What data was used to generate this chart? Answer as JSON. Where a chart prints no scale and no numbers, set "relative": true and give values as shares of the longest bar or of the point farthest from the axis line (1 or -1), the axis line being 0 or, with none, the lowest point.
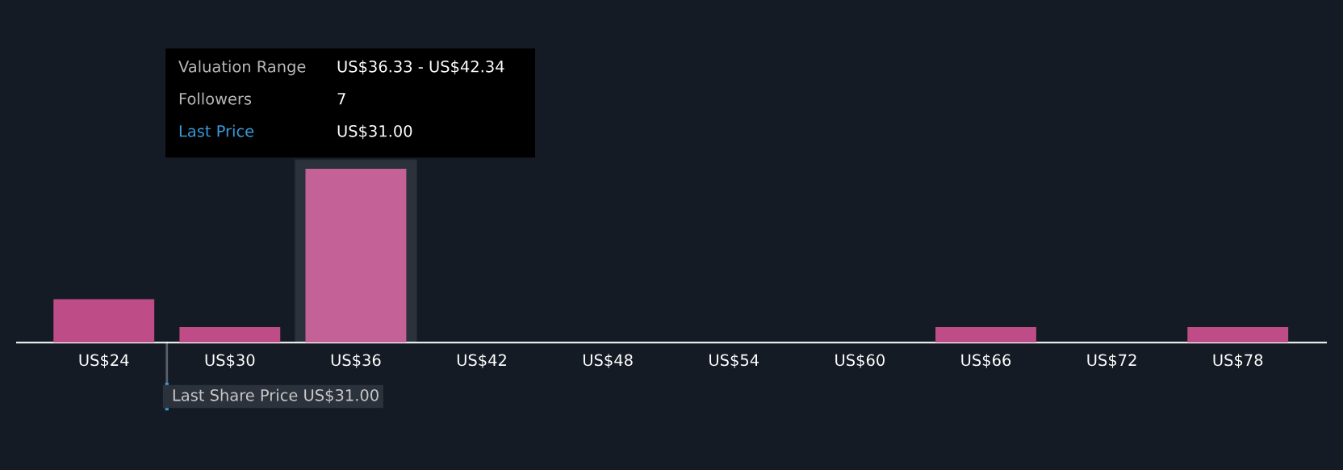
{
  "chart_data": {
    "type": "bar",
    "relative": true,
    "categories": [
      "US$24",
      "US$30",
      "US$36",
      "US$42",
      "US$48",
      "US$54",
      "US$60",
      "US$66",
      "US$72",
      "US$78"
    ],
    "values": [
      0.25,
      0.09,
      1,
      0,
      0,
      0,
      0,
      0.09,
      0,
      0.09
    ],
    "colors": [
      "#bd4c87",
      "#bd4c87",
      "#c46298",
      "#bd4c87",
      "#bd4c87",
      "#bd4c87",
      "#bd4c87",
      "#bd4c87",
      "#bd4c87",
      "#bd4c87"
    ],
    "bands": [
      {
        "axis": "x",
        "from": "US$36",
        "to": "US$36",
        "color": "#2c323c"
      }
    ],
    "ref_lines": [
      {
        "axis": "x",
        "value": "US$30",
        "label": "Last Share Price US$31.00",
        "color": "#3a9ad9"
      }
    ],
    "annotations": [
      "Valuation Range",
      "US$36.33 - US$42.34",
      "Followers",
      "7",
      "Last Price",
      "US$31.00"
    ],
    "grid": false,
    "legend": false
  }
}
